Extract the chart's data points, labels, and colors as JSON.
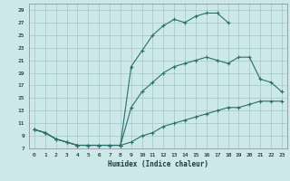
{
  "xlabel": "Humidex (Indice chaleur)",
  "bg_color": "#cce8e8",
  "grid_color": "#aacccc",
  "line_color": "#2a6e6e",
  "marker": "+",
  "xlim": [
    -0.5,
    23.5
  ],
  "ylim": [
    7,
    30
  ],
  "xticks": [
    0,
    1,
    2,
    3,
    4,
    5,
    6,
    7,
    8,
    9,
    10,
    11,
    12,
    13,
    14,
    15,
    16,
    17,
    18,
    19,
    20,
    21,
    22,
    23
  ],
  "yticks": [
    7,
    9,
    11,
    13,
    15,
    17,
    19,
    21,
    23,
    25,
    27,
    29
  ],
  "line1_x": [
    0,
    1,
    2,
    3,
    4,
    5,
    6,
    7,
    8,
    9,
    10,
    11,
    12,
    13,
    14,
    15,
    16,
    17,
    18,
    19,
    20,
    21,
    22,
    23
  ],
  "line1_y": [
    10,
    9.5,
    8.5,
    8.0,
    7.5,
    7.5,
    7.5,
    7.5,
    7.5,
    8.0,
    9.0,
    9.5,
    10.5,
    11.0,
    11.5,
    12.0,
    12.5,
    13.0,
    13.5,
    13.5,
    14.0,
    14.5,
    14.5,
    14.5
  ],
  "line2_x": [
    0,
    1,
    2,
    3,
    4,
    5,
    6,
    7,
    8,
    9,
    10,
    11,
    12,
    13,
    14,
    15,
    16,
    17,
    18,
    19,
    20,
    21,
    22,
    23
  ],
  "line2_y": [
    10,
    9.5,
    8.5,
    8.0,
    7.5,
    7.5,
    7.5,
    7.5,
    7.5,
    13.5,
    16.0,
    17.5,
    19.0,
    20.0,
    20.5,
    21.0,
    21.5,
    21.0,
    20.5,
    21.5,
    21.5,
    18.0,
    17.5,
    16.0
  ],
  "line3_x": [
    0,
    1,
    2,
    3,
    4,
    5,
    6,
    7,
    8,
    9,
    10,
    11,
    12,
    13,
    14,
    15,
    16,
    17,
    18
  ],
  "line3_y": [
    10,
    9.5,
    8.5,
    8.0,
    7.5,
    7.5,
    7.5,
    7.5,
    7.5,
    20.0,
    22.5,
    25.0,
    26.5,
    27.5,
    27.0,
    28.0,
    28.5,
    28.5,
    27.0
  ]
}
